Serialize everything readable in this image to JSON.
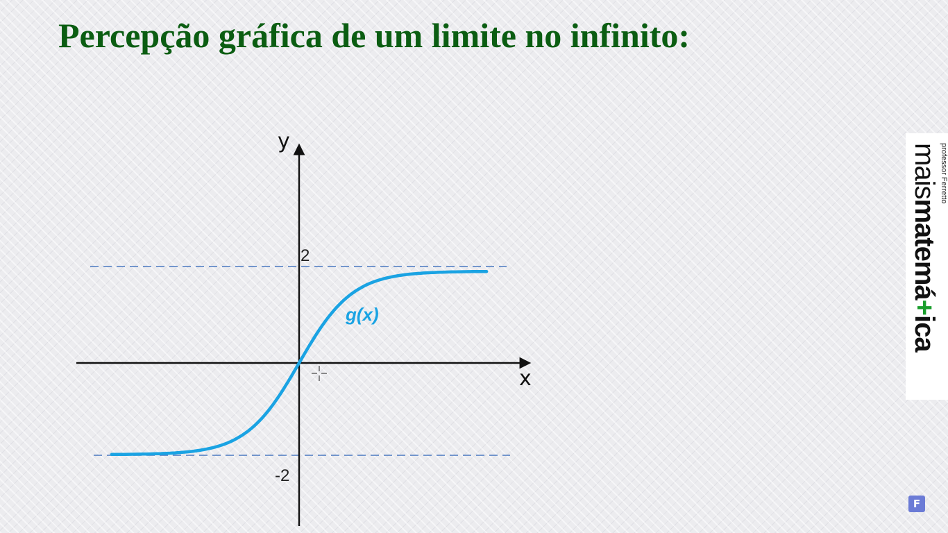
{
  "title": "Percepção gráfica de um limite no infinito:",
  "graph": {
    "x_axis_label": "x",
    "y_axis_label": "y",
    "function_label": "g(x)",
    "upper_asymptote": 2,
    "lower_asymptote": -2,
    "upper_label": "2",
    "lower_label": "-2",
    "curve_color": "#1aa3e3",
    "asymptote_color": "#4a78c0",
    "x_min": -3.7,
    "x_max": 3.7
  },
  "brand": {
    "name_light": "mais",
    "name_bold": "matem",
    "name_a": "á",
    "name_plus": "+",
    "name_end": "ica",
    "subtitle": "professor Ferretto",
    "accent_color": "#1a9e2c"
  },
  "badge": {
    "letter": "F",
    "icon": "f-logo-icon",
    "color": "#6b7bd6"
  }
}
